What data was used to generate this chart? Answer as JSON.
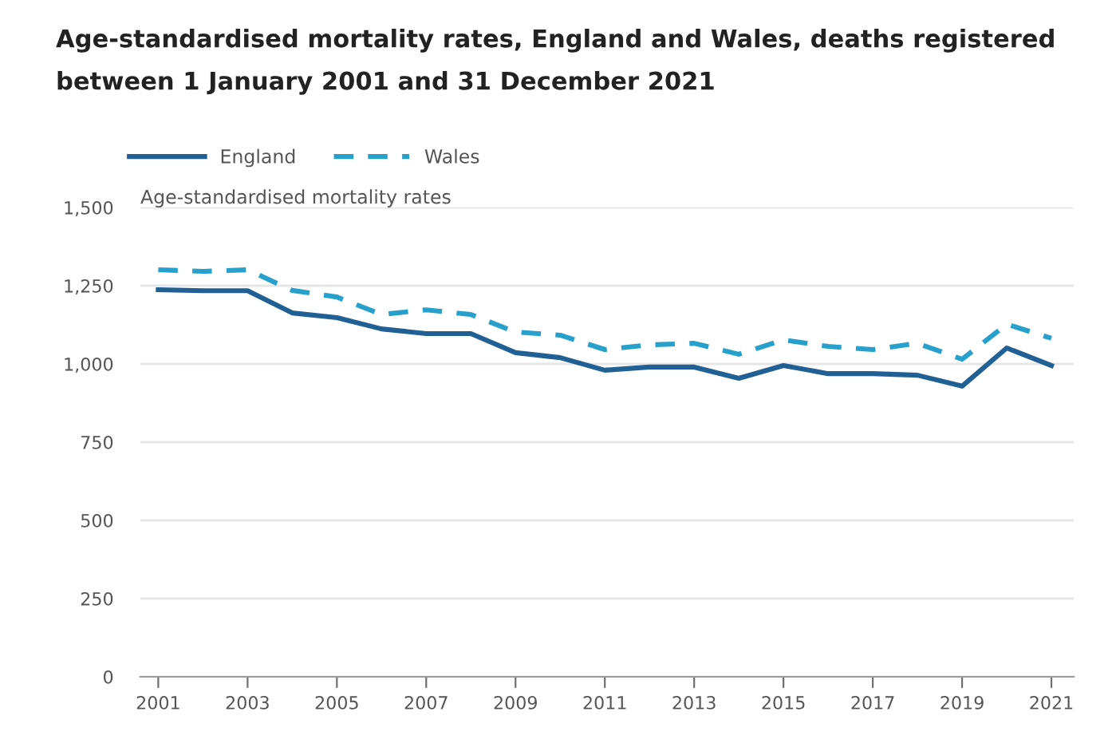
{
  "chart_data": {
    "type": "line",
    "title": "Age-standardised mortality rates, England and Wales, deaths registered\nbetween 1 January 2001 and 31 December 2021",
    "ylabel": "Age-standardised mortality rates",
    "x": [
      2001,
      2002,
      2003,
      2004,
      2005,
      2006,
      2007,
      2008,
      2009,
      2010,
      2011,
      2012,
      2013,
      2014,
      2015,
      2016,
      2017,
      2018,
      2019,
      2020,
      2021
    ],
    "series": [
      {
        "name": "England",
        "color": "#206095",
        "line_style": "solid",
        "values": [
          1237,
          1234,
          1234,
          1163,
          1148,
          1112,
          1097,
          1097,
          1036,
          1020,
          980,
          990,
          990,
          954,
          995,
          969,
          969,
          964,
          929,
          1051,
          995
        ]
      },
      {
        "name": "Wales",
        "color": "#27a0cc",
        "line_style": "dashed",
        "values": [
          1301,
          1296,
          1301,
          1235,
          1214,
          1158,
          1173,
          1158,
          1102,
          1092,
          1046,
          1061,
          1066,
          1031,
          1077,
          1056,
          1046,
          1066,
          1015,
          1127,
          1082
        ]
      }
    ],
    "xlim": [
      2000.6,
      2021.5
    ],
    "xticks": [
      2001,
      2003,
      2005,
      2007,
      2009,
      2011,
      2013,
      2015,
      2017,
      2019,
      2021
    ],
    "ylim": [
      0,
      1500
    ],
    "yticks": [
      {
        "value": 0,
        "label": "0"
      },
      {
        "value": 250,
        "label": "250"
      },
      {
        "value": 500,
        "label": "500"
      },
      {
        "value": 750,
        "label": "750"
      },
      {
        "value": 1000,
        "label": "1,000"
      },
      {
        "value": 1250,
        "label": "1,250"
      },
      {
        "value": 1500,
        "label": "1,500"
      }
    ],
    "grid": "y",
    "legend": "top left"
  }
}
